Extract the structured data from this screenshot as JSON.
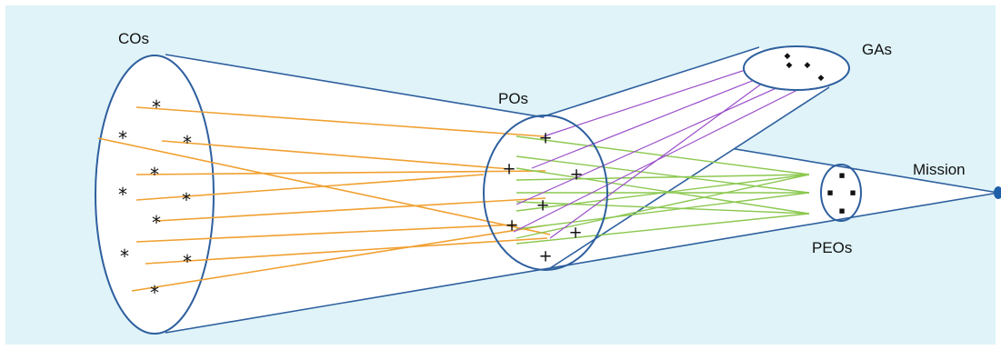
{
  "labels": {
    "cos": "COs",
    "pos": "POs",
    "gas": "GAs",
    "mission": "Mission",
    "peos": "PEOs"
  },
  "colors": {
    "background": "#dff3f8",
    "outline": "#2e5f9e",
    "co_po_links": "#f0a030",
    "po_peo_links": "#8cc850",
    "po_ga_links": "#9a4fc9",
    "mission_dot": "#1f5fa8"
  },
  "marks": {
    "co": "*",
    "po": "+",
    "ga": "◆",
    "peo": "■"
  }
}
